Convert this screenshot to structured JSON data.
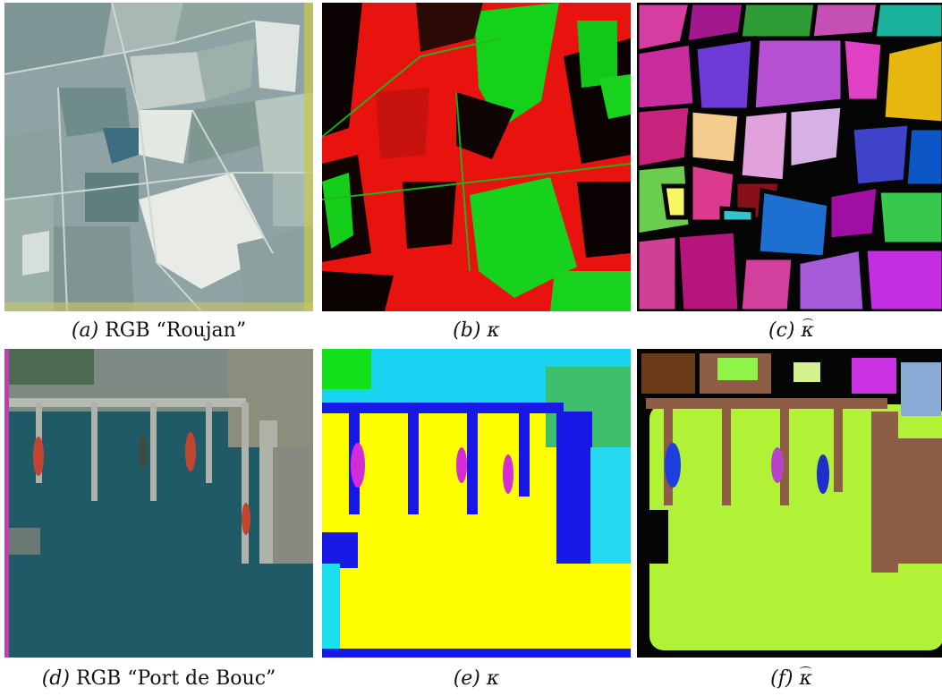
{
  "panels": [
    {
      "letter": "(a)",
      "rest": "RGB “Roujan”"
    },
    {
      "letter": "(b)",
      "symbol": "κ"
    },
    {
      "letter": "(c)",
      "symbol": "κ"
    },
    {
      "letter": "(d)",
      "rest": "RGB “Port de Bouc”"
    },
    {
      "letter": "(e)",
      "symbol": "κ"
    },
    {
      "letter": "(f)",
      "symbol": "κ"
    }
  ]
}
